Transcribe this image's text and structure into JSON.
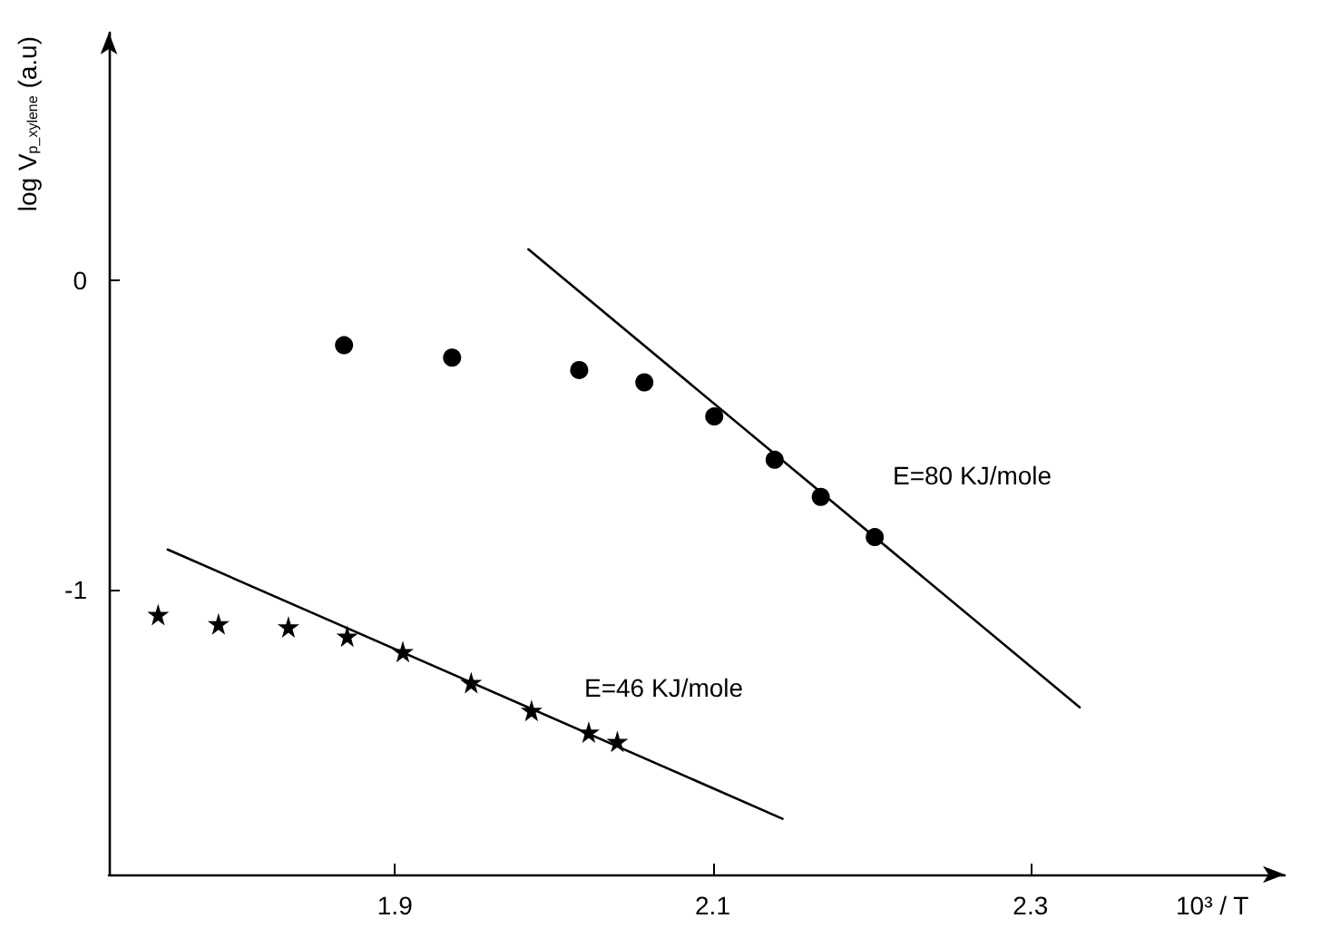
{
  "chart_data": {
    "type": "scatter",
    "xlabel": "10³ / T",
    "ylabel": "log V$_{p_xylene}$ (a.u)",
    "xlim": [
      1.72,
      2.46
    ],
    "ylim": [
      -1.92,
      0.8
    ],
    "xticks": [
      1.9,
      2.1,
      2.3
    ],
    "yticks": [
      0,
      -1
    ],
    "grid": false,
    "series": [
      {
        "marker": "circle",
        "color": "#000000",
        "x": [
          1.868,
          1.936,
          2.016,
          2.057,
          2.101,
          2.139,
          2.168,
          2.202
        ],
        "values": [
          -0.21,
          -0.25,
          -0.29,
          -0.33,
          -0.44,
          -0.58,
          -0.7,
          -0.83
        ]
      },
      {
        "marker": "star",
        "color": "#000000",
        "x": [
          1.751,
          1.789,
          1.833,
          1.87,
          1.905,
          1.948,
          1.986,
          2.022,
          2.04
        ],
        "values": [
          -1.08,
          -1.11,
          -1.12,
          -1.15,
          -1.2,
          -1.3,
          -1.39,
          -1.46,
          -1.49
        ]
      },
      {
        "type": "line",
        "marker": "none",
        "line_style": "solid",
        "color": "#000000",
        "x": [
          1.984,
          2.331
        ],
        "values": [
          0.1,
          -1.38
        ]
      },
      {
        "type": "line",
        "marker": "none",
        "line_style": "solid",
        "color": "#000000",
        "x": [
          1.757,
          2.144
        ],
        "values": [
          -0.87,
          -1.74
        ]
      }
    ],
    "annotations": [
      "E=80 KJ/mole",
      "E=46 KJ/mole"
    ]
  }
}
